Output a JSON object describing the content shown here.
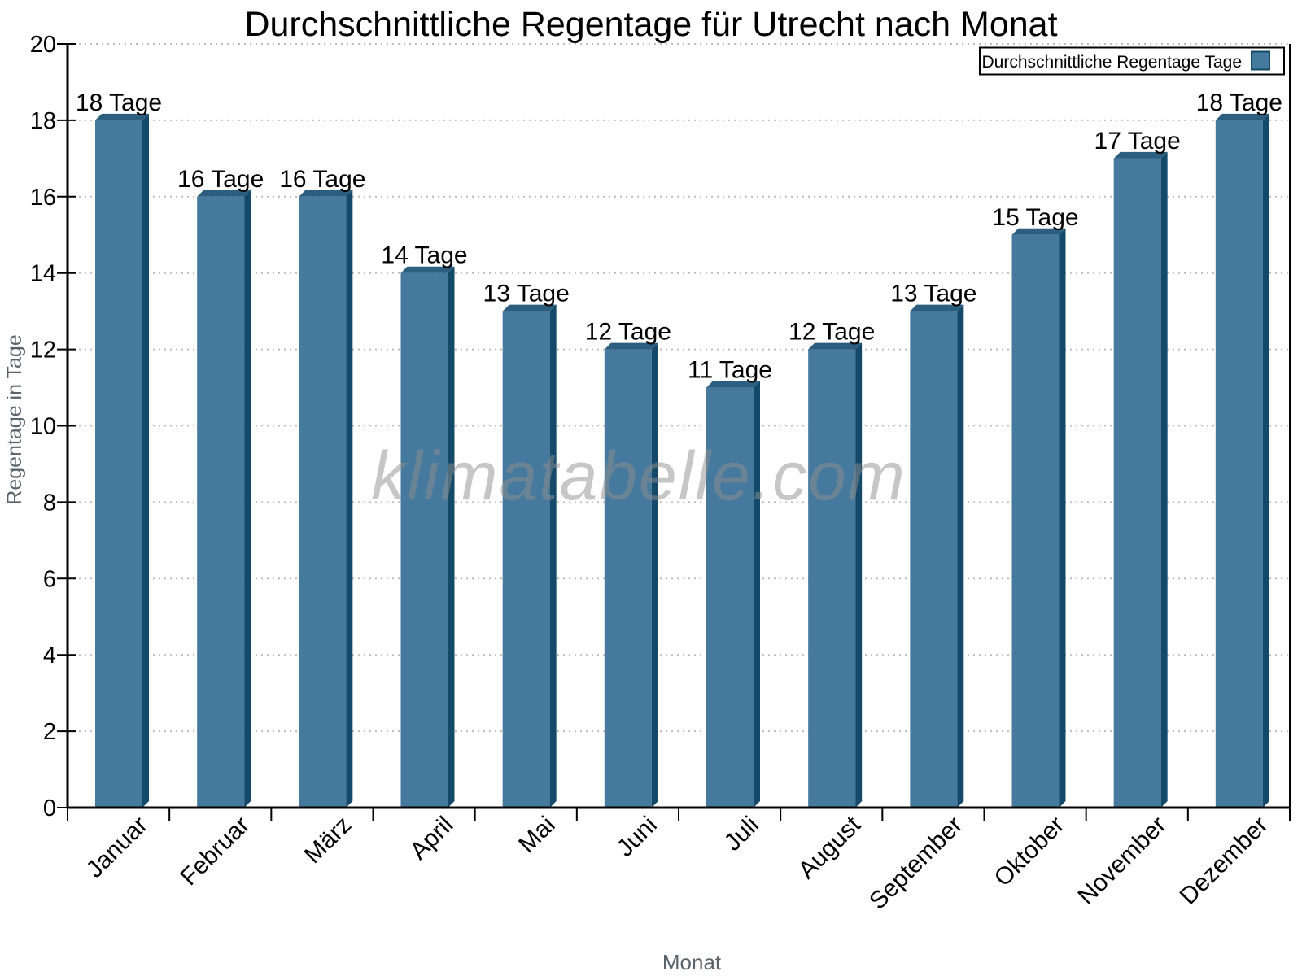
{
  "title": "Durchschnittliche Regentage für Utrecht nach Monat",
  "watermark": "klimatabelle.com",
  "legend": {
    "label": "Durchschnittliche Regentage Tage",
    "swatch_color": "#46799E",
    "swatch_border_color": "#14496A"
  },
  "axes": {
    "x_title": "Monat",
    "y_title": "Regentage in Tage",
    "y_ticks": [
      0,
      2,
      4,
      6,
      8,
      10,
      12,
      14,
      16,
      18,
      20
    ]
  },
  "colors": {
    "bar_front": "#46799E",
    "bar_side": "#14496A",
    "bar_top": "#2B5E7F",
    "gridline": "#bdbdbd",
    "axis": "#000000",
    "muted_text": "#59636b"
  },
  "chart_data": {
    "type": "bar",
    "title": "Durchschnittliche Regentage für Utrecht nach Monat",
    "categories": [
      "Januar",
      "Februar",
      "März",
      "April",
      "Mai",
      "Juni",
      "Juli",
      "August",
      "September",
      "Oktober",
      "November",
      "Dezember"
    ],
    "series": [
      {
        "name": "Durchschnittliche Regentage Tage",
        "values": [
          18,
          16,
          16,
          14,
          13,
          12,
          11,
          12,
          13,
          15,
          17,
          18
        ]
      }
    ],
    "value_label_suffix": " Tage",
    "value_labels": [
      "18 Tage",
      "16 Tage",
      "16 Tage",
      "14 Tage",
      "13 Tage",
      "12 Tage",
      "11 Tage",
      "12 Tage",
      "13 Tage",
      "15 Tage",
      "17 Tage",
      "18 Tage"
    ],
    "xlabel": "Monat",
    "ylabel": "Regentage in Tage",
    "ylim": [
      0,
      20
    ],
    "y_tick_step": 2,
    "grid": "horizontal-dotted",
    "legend_position": "top-right",
    "bar_style": "pseudo-3d",
    "bar_color": "#46799E"
  }
}
